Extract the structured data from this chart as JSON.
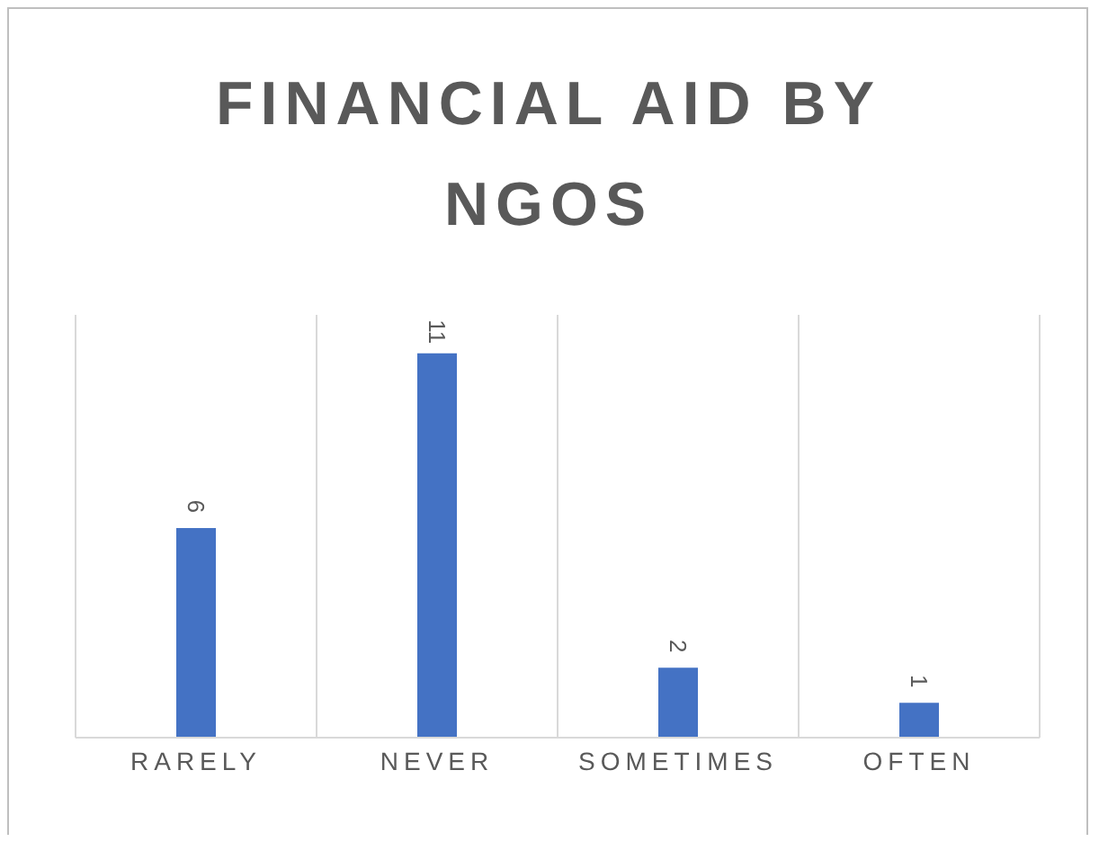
{
  "chart_data": {
    "type": "bar",
    "title": "FINANCIAL AID BY NGOS",
    "categories": [
      "RARELY",
      "NEVER",
      "SOMETIMES",
      "OFTEN"
    ],
    "values": [
      6,
      11,
      2,
      1
    ],
    "color": "#4472c4",
    "data_labels": true,
    "grid": "x"
  }
}
